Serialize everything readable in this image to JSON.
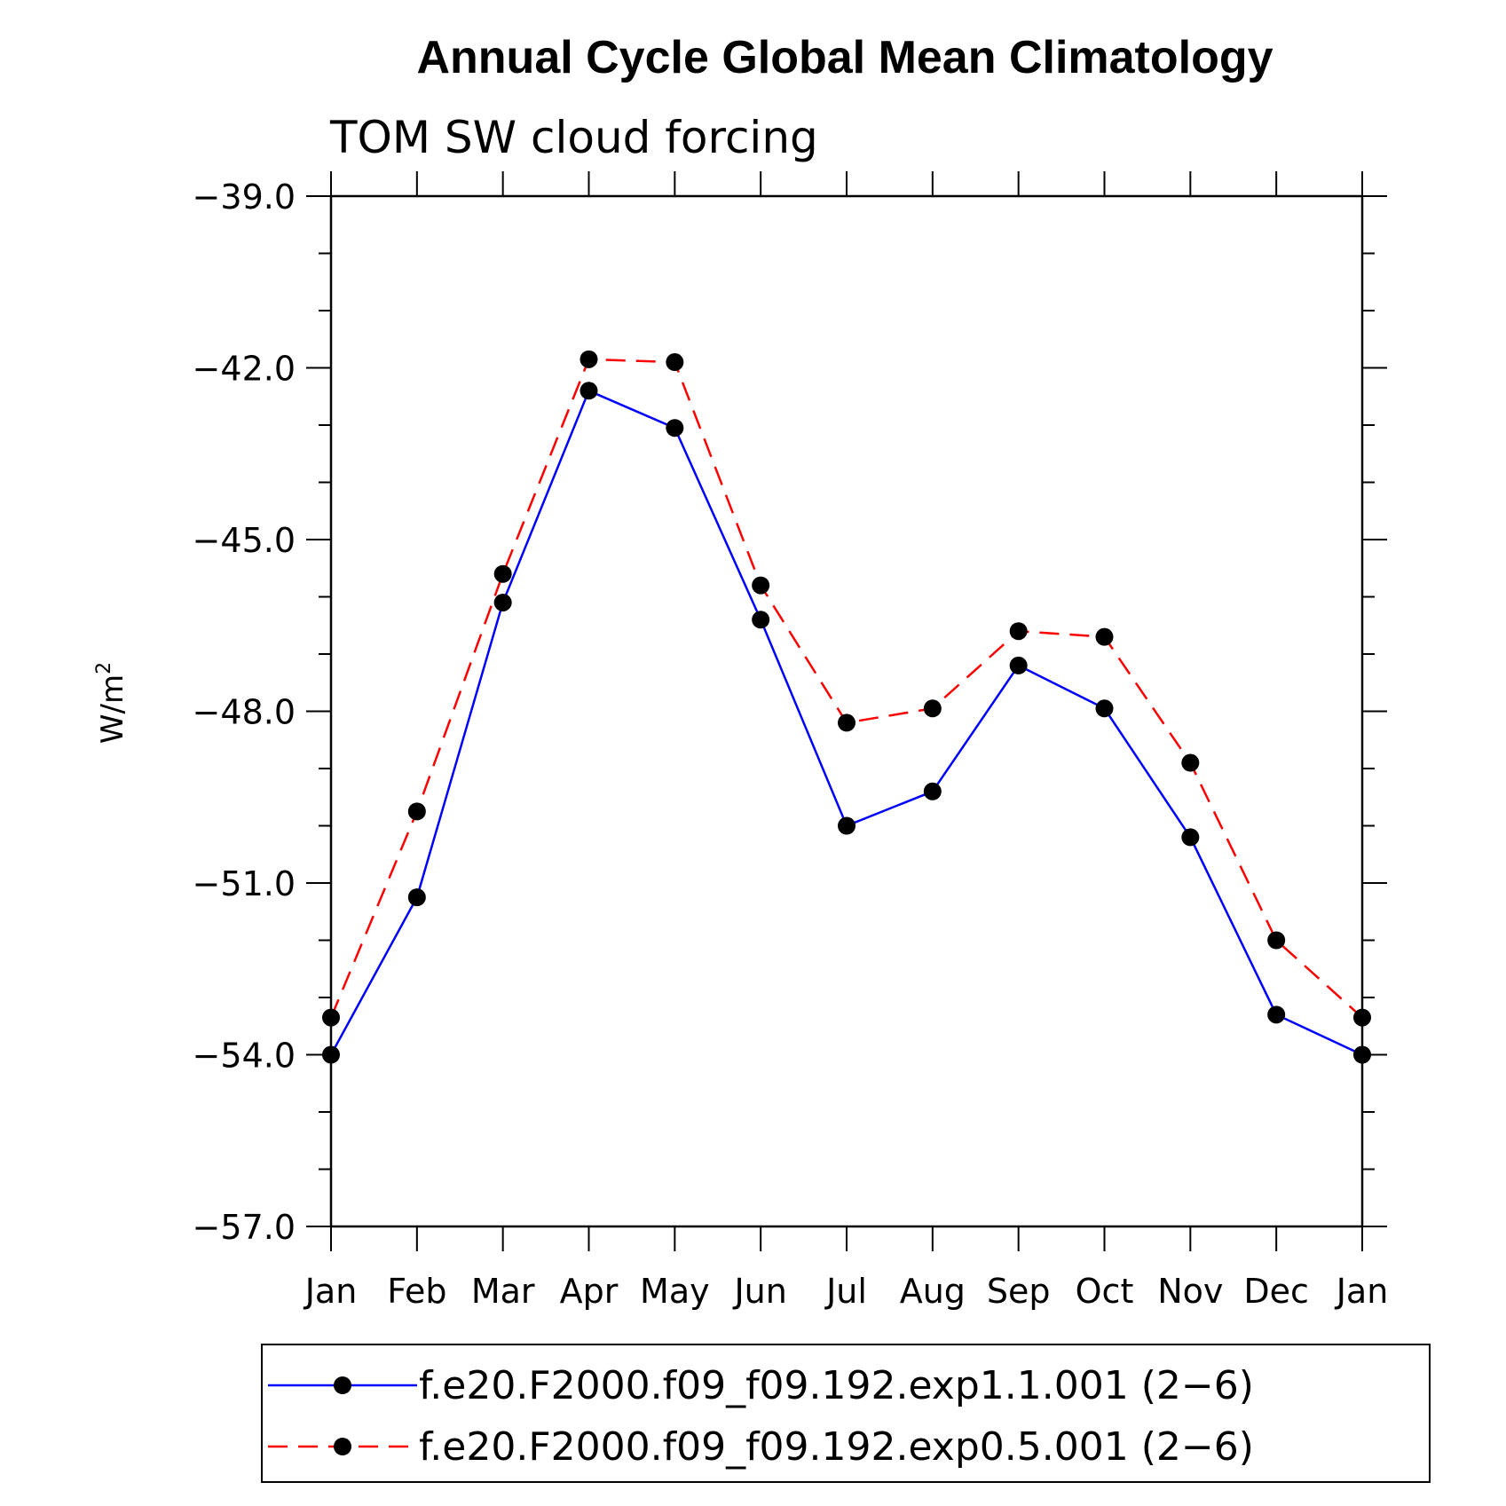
{
  "chart_data": {
    "type": "line",
    "title": "Annual Cycle Global Mean Climatology",
    "subtitle": "TOM SW cloud forcing",
    "ylabel_base": "W/m",
    "ylabel_sup": "2",
    "ylim": [
      -57.0,
      -39.0
    ],
    "yticks": [
      -39.0,
      -42.0,
      -45.0,
      -48.0,
      -51.0,
      -54.0,
      -57.0
    ],
    "ytick_labels": [
      "−39.0",
      "−42.0",
      "−45.0",
      "−48.0",
      "−51.0",
      "−54.0",
      "−57.0"
    ],
    "categories": [
      "Jan",
      "Feb",
      "Mar",
      "Apr",
      "May",
      "Jun",
      "Jul",
      "Aug",
      "Sep",
      "Oct",
      "Nov",
      "Dec",
      "Jan"
    ],
    "series": [
      {
        "name": "f.e20.F2000.f09_f09.192.exp1.1.001 (2−6)",
        "color": "#0000ff",
        "style": "solid",
        "values": [
          -54.0,
          -51.25,
          -46.1,
          -42.4,
          -43.05,
          -46.4,
          -50.0,
          -49.4,
          -47.2,
          -47.95,
          -50.2,
          -53.3,
          -54.0
        ]
      },
      {
        "name": "f.e20.F2000.f09_f09.192.exp0.5.001 (2−6)",
        "color": "#ff0000",
        "style": "dashed",
        "values": [
          -53.35,
          -49.75,
          -45.6,
          -41.85,
          -41.9,
          -45.8,
          -48.2,
          -47.95,
          -46.6,
          -46.7,
          -48.9,
          -52.0,
          -53.35
        ]
      }
    ],
    "legend_position": "bottom"
  }
}
